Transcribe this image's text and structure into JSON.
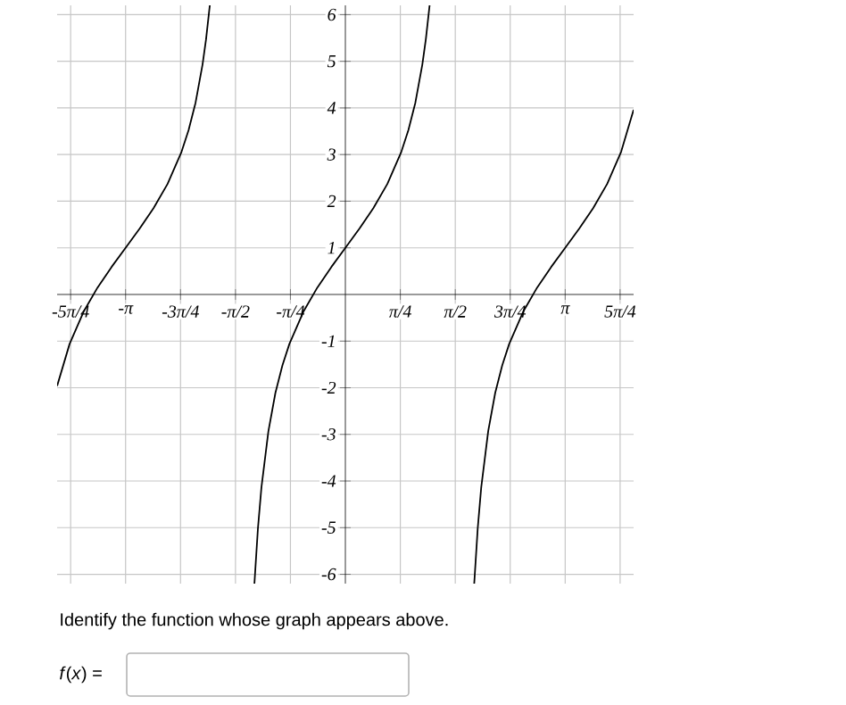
{
  "chart_data": {
    "type": "line",
    "series": [
      {
        "color": "#000000",
        "x": [
          -4.12,
          -3.9416,
          -3.7416,
          -3.5416,
          -3.3416,
          -3.1416,
          -2.9416,
          -2.7416,
          -2.5416,
          -2.3416,
          -2.2416,
          -2.1416,
          -2.0416,
          -1.9916,
          -1.9376
        ],
        "values": [
          -1.96,
          -1.06,
          -0.37,
          0.15,
          0.59,
          1,
          1.41,
          1.85,
          2.37,
          3.06,
          3.52,
          4.11,
          4.93,
          5.47,
          6.2
        ]
      },
      {
        "color": "#000000",
        "x": [
          -1.3,
          -1.25,
          -1.2,
          -1.1,
          -1.0,
          -0.9,
          -0.8,
          -0.6,
          -0.4,
          -0.2,
          0,
          0.2,
          0.4,
          0.6,
          0.8,
          0.9,
          1.0,
          1.1,
          1.15,
          1.204
        ],
        "values": [
          -6.2,
          -5.02,
          -4.14,
          -2.93,
          -2.11,
          -1.52,
          -1.06,
          -0.37,
          0.15,
          0.59,
          1,
          1.41,
          1.85,
          2.37,
          3.06,
          3.52,
          4.11,
          4.93,
          5.47,
          6.2
        ]
      },
      {
        "color": "#000000",
        "x": [
          1.8416,
          1.8916,
          1.9416,
          2.0416,
          2.1416,
          2.2416,
          2.3416,
          2.5416,
          2.7416,
          2.9416,
          3.1416,
          3.3416,
          3.5416,
          3.7416,
          3.9416,
          4.12
        ],
        "values": [
          -6.2,
          -5.02,
          -4.14,
          -2.93,
          -2.11,
          -1.52,
          -1.06,
          -0.37,
          0.15,
          0.59,
          1,
          1.41,
          1.85,
          2.37,
          3.06,
          3.96
        ]
      }
    ],
    "xlim": [
      -4.12,
      4.12
    ],
    "ylim": [
      -6.2,
      6.2
    ],
    "xticks": [
      {
        "value": -3.927,
        "label": "-5π/4"
      },
      {
        "value": -3.1416,
        "label": "-π"
      },
      {
        "value": -2.3562,
        "label": "-3π/4"
      },
      {
        "value": -1.5708,
        "label": "-π/2"
      },
      {
        "value": -0.7854,
        "label": "-π/4"
      },
      {
        "value": 0.7854,
        "label": "π/4"
      },
      {
        "value": 1.5708,
        "label": "π/2"
      },
      {
        "value": 2.3562,
        "label": "3π/4"
      },
      {
        "value": 3.1416,
        "label": "π"
      },
      {
        "value": 3.927,
        "label": "5π/4"
      }
    ],
    "yticks": [
      -6,
      -5,
      -4,
      -3,
      -2,
      -1,
      1,
      2,
      3,
      4,
      5,
      6
    ],
    "grid": true,
    "annotations": [
      "Identify the function whose graph appears above.",
      "*f*(*x*) ="
    ]
  }
}
